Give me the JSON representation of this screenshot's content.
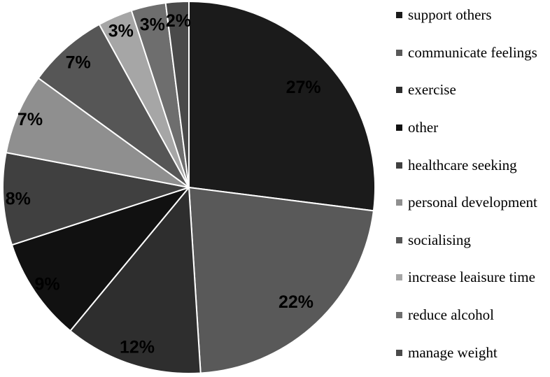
{
  "chart_data": {
    "type": "pie",
    "title": "",
    "legend_position": "right",
    "background_color": "#ffffff",
    "separator_color": "#ffffff",
    "data_label_suffix": "%",
    "data_label_color": "#000000",
    "slices": [
      {
        "label": "support others",
        "percent": 27,
        "color": "#1b1b1b",
        "label_r": 0.82
      },
      {
        "label": "communicate feelings",
        "percent": 22,
        "color": "#595959",
        "label_r": 0.84
      },
      {
        "label": "exercise",
        "percent": 12,
        "color": "#2e2e2e",
        "label_r": 0.9
      },
      {
        "label": "other",
        "percent": 9,
        "color": "#111111",
        "label_r": 0.92
      },
      {
        "label": "healthcare seeking",
        "percent": 8,
        "color": "#404040",
        "label_r": 0.92
      },
      {
        "label": "personal development",
        "percent": 7,
        "color": "#8f8f8f",
        "label_r": 0.93
      },
      {
        "label": "socialising",
        "percent": 7,
        "color": "#565656",
        "label_r": 0.9
      },
      {
        "label": "increase leaisure time",
        "percent": 3,
        "color": "#a6a6a6",
        "label_r": 0.92
      },
      {
        "label": "reduce alcohol",
        "percent": 3,
        "color": "#6e6e6e",
        "label_r": 0.9
      },
      {
        "label": "manage weight",
        "percent": 2,
        "color": "#4a4a4a",
        "label_r": 0.9
      }
    ]
  }
}
